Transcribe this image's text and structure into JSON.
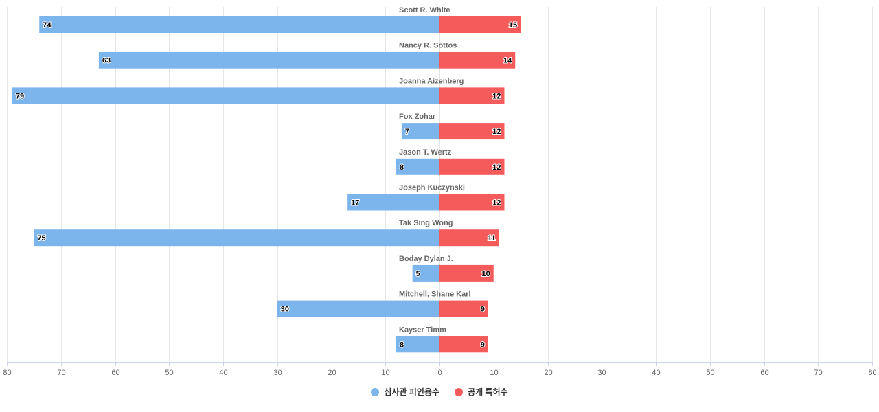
{
  "chart_data": {
    "type": "bar",
    "orientation": "horizontal-diverging",
    "categories": [
      "Scott R. White",
      "Nancy R. Sottos",
      "Joanna Aizenberg",
      "Fox Zohar",
      "Jason T. Wertz",
      "Joseph Kuczynski",
      "Tak Sing Wong",
      "Boday Dylan J.",
      "Mitchell, Shane Karl",
      "Kayser Timm"
    ],
    "series": [
      {
        "name": "심사관 피인용수",
        "color": "#7cb5ec",
        "direction": "left",
        "values": [
          74,
          63,
          79,
          7,
          8,
          17,
          75,
          5,
          30,
          8
        ]
      },
      {
        "name": "공개 특허수",
        "color": "#f45b5b",
        "direction": "right",
        "values": [
          15,
          14,
          12,
          12,
          12,
          12,
          11,
          10,
          9,
          9
        ]
      }
    ],
    "xlim": [
      -80,
      80
    ],
    "ticks": [
      80,
      70,
      60,
      50,
      40,
      30,
      20,
      10,
      0,
      10,
      20,
      30,
      40,
      50,
      60,
      70,
      80
    ],
    "grid": true,
    "legend_position": "bottom-center"
  }
}
